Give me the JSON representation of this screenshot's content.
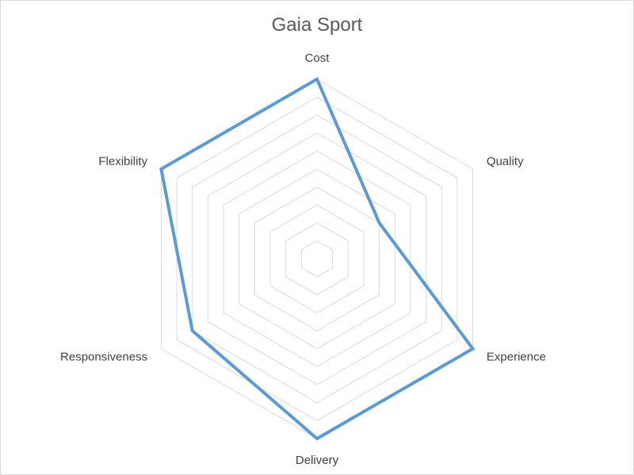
{
  "chart_data": {
    "type": "radar",
    "title": "Gaia Sport",
    "categories": [
      "Cost",
      "Quality",
      "Experience",
      "Delivery",
      "Responsiveness",
      "Flexibility"
    ],
    "series": [
      {
        "values": [
          10,
          4,
          10,
          10,
          8,
          10
        ]
      }
    ],
    "rlim": [
      0,
      10
    ],
    "gridlines": 10,
    "grid": true,
    "legend": "none",
    "colors": {
      "series": "#5b9bd5",
      "grid": "#d9d9d9",
      "text": "#404040",
      "title": "#595959"
    }
  }
}
